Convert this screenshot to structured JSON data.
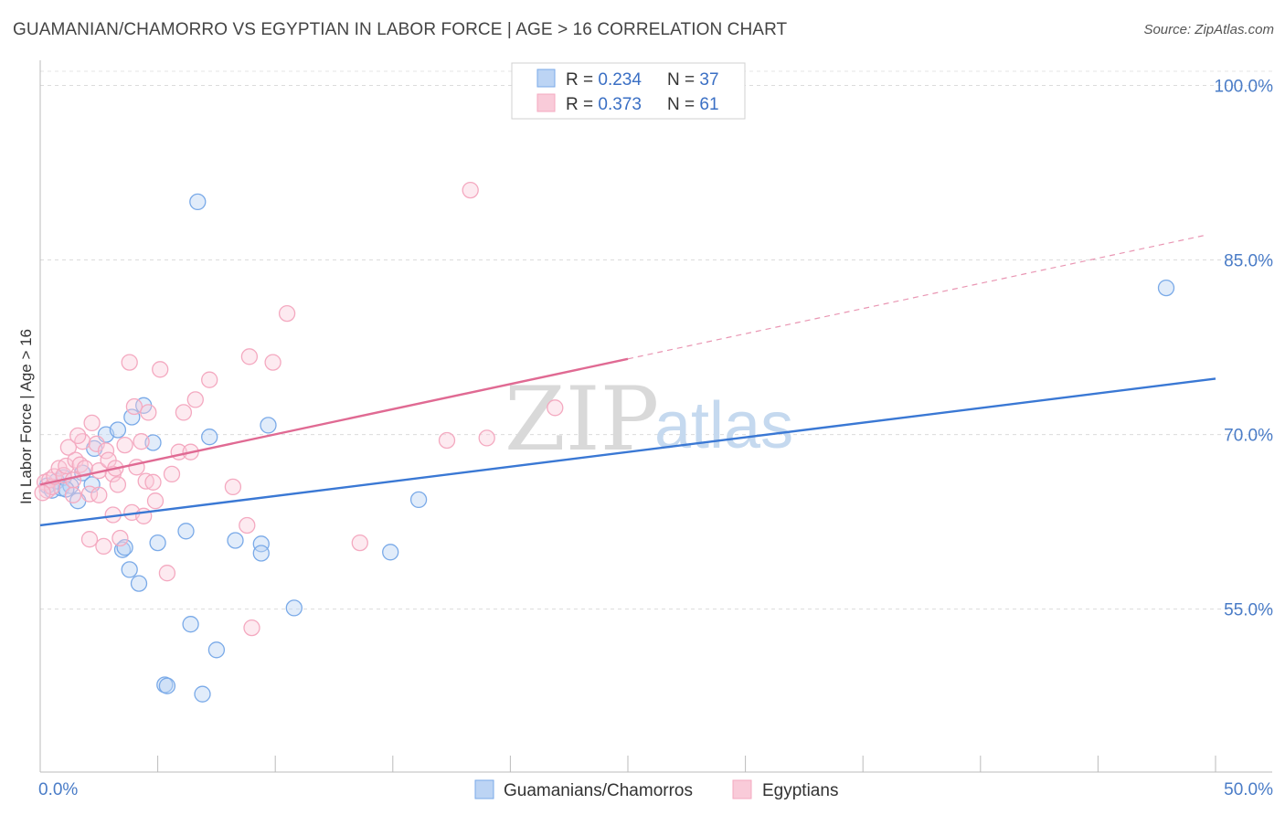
{
  "title": "GUAMANIAN/CHAMORRO VS EGYPTIAN IN LABOR FORCE | AGE > 16 CORRELATION CHART",
  "source": "Source: ZipAtlas.com",
  "watermark": {
    "zip": "ZIP",
    "atlas": "atlas"
  },
  "legend": {
    "rows": [
      {
        "r_label": "R = ",
        "r_value": "0.234",
        "n_label": "N = ",
        "n_value": "37"
      },
      {
        "r_label": "R = ",
        "r_value": "0.373",
        "n_label": "N = ",
        "n_value": "61"
      }
    ]
  },
  "chart_data": {
    "type": "scatter",
    "title": "GUAMANIAN/CHAMORRO VS EGYPTIAN IN LABOR FORCE | AGE > 16 CORRELATION CHART",
    "xlabel": "",
    "ylabel": "In Labor Force | Age > 16",
    "xlim": [
      0,
      50
    ],
    "ylim": [
      41,
      102
    ],
    "x_tick_labels": [
      {
        "value": 0,
        "label": "0.0%"
      },
      {
        "value": 50,
        "label": "50.0%"
      }
    ],
    "y_tick_labels": [
      {
        "value": 100,
        "label": "100.0%"
      },
      {
        "value": 85,
        "label": "85.0%"
      },
      {
        "value": 70,
        "label": "70.0%"
      },
      {
        "value": 55,
        "label": "55.0%"
      }
    ],
    "grid": "horizontal dashed",
    "legend_position": "top-center",
    "series": [
      {
        "name": "Guamanians/Chamorros",
        "color": "#7aaae8",
        "trend_color": "#3a78d4",
        "trend": {
          "x_start": 0,
          "y_start": 62.2,
          "x_end": 50,
          "y_end": 74.8
        },
        "points": [
          [
            0.3,
            65.6
          ],
          [
            0.5,
            65.2
          ],
          [
            0.7,
            66.0
          ],
          [
            0.9,
            65.4
          ],
          [
            1.0,
            66.3
          ],
          [
            1.3,
            65.6
          ],
          [
            1.6,
            64.3
          ],
          [
            1.8,
            66.7
          ],
          [
            2.2,
            65.7
          ],
          [
            2.3,
            68.8
          ],
          [
            2.8,
            70.0
          ],
          [
            3.3,
            70.4
          ],
          [
            3.5,
            60.1
          ],
          [
            3.6,
            60.3
          ],
          [
            3.8,
            58.4
          ],
          [
            3.9,
            71.5
          ],
          [
            4.2,
            57.2
          ],
          [
            4.4,
            72.5
          ],
          [
            4.8,
            69.3
          ],
          [
            5.0,
            60.7
          ],
          [
            5.3,
            48.5
          ],
          [
            5.4,
            48.4
          ],
          [
            6.2,
            61.7
          ],
          [
            6.4,
            53.7
          ],
          [
            6.7,
            90.0
          ],
          [
            6.9,
            47.7
          ],
          [
            7.2,
            69.8
          ],
          [
            7.5,
            51.5
          ],
          [
            8.3,
            60.9
          ],
          [
            9.4,
            60.6
          ],
          [
            9.4,
            59.8
          ],
          [
            9.7,
            70.8
          ],
          [
            10.8,
            55.1
          ],
          [
            14.9,
            59.9
          ],
          [
            16.1,
            64.4
          ],
          [
            47.9,
            82.6
          ],
          [
            1.1,
            65.3
          ]
        ]
      },
      {
        "name": "Egyptians",
        "color": "#f4a9c0",
        "trend_color": "#e06a93",
        "trend": {
          "x_start": 0,
          "y_start": 65.7,
          "x_end": 25,
          "y_end": 76.5
        },
        "trend_extension": {
          "x_start": 25,
          "y_start": 76.5,
          "x_end": 49.5,
          "y_end": 87.1
        },
        "points": [
          [
            0.2,
            65.9
          ],
          [
            0.3,
            65.2
          ],
          [
            0.4,
            66.1
          ],
          [
            0.5,
            65.5
          ],
          [
            0.6,
            66.4
          ],
          [
            0.8,
            67.1
          ],
          [
            1.0,
            66.5
          ],
          [
            1.1,
            67.3
          ],
          [
            1.2,
            68.9
          ],
          [
            1.4,
            66.1
          ],
          [
            1.4,
            64.8
          ],
          [
            1.5,
            67.8
          ],
          [
            1.7,
            67.4
          ],
          [
            1.8,
            69.4
          ],
          [
            1.9,
            67.1
          ],
          [
            2.1,
            64.9
          ],
          [
            2.1,
            61.0
          ],
          [
            2.2,
            71.0
          ],
          [
            2.4,
            69.2
          ],
          [
            2.5,
            66.9
          ],
          [
            2.5,
            64.8
          ],
          [
            2.7,
            60.4
          ],
          [
            2.8,
            68.6
          ],
          [
            2.9,
            67.8
          ],
          [
            3.1,
            66.6
          ],
          [
            3.1,
            63.1
          ],
          [
            3.2,
            67.1
          ],
          [
            3.3,
            65.7
          ],
          [
            3.4,
            61.1
          ],
          [
            3.6,
            69.1
          ],
          [
            3.8,
            76.2
          ],
          [
            3.9,
            63.3
          ],
          [
            4.0,
            72.4
          ],
          [
            4.1,
            67.2
          ],
          [
            4.3,
            69.4
          ],
          [
            4.4,
            63.0
          ],
          [
            4.5,
            66.0
          ],
          [
            4.6,
            71.9
          ],
          [
            4.8,
            65.9
          ],
          [
            4.9,
            64.3
          ],
          [
            5.1,
            75.6
          ],
          [
            5.4,
            58.1
          ],
          [
            5.6,
            66.6
          ],
          [
            5.9,
            68.5
          ],
          [
            6.1,
            71.9
          ],
          [
            6.4,
            68.5
          ],
          [
            6.6,
            73.0
          ],
          [
            7.2,
            74.7
          ],
          [
            8.2,
            65.5
          ],
          [
            8.8,
            62.2
          ],
          [
            8.9,
            76.7
          ],
          [
            9.0,
            53.4
          ],
          [
            9.9,
            76.2
          ],
          [
            10.5,
            80.4
          ],
          [
            13.6,
            60.7
          ],
          [
            17.3,
            69.5
          ],
          [
            18.3,
            91.0
          ],
          [
            19.0,
            69.7
          ],
          [
            21.9,
            72.3
          ],
          [
            0.1,
            65.0
          ],
          [
            1.6,
            69.9
          ]
        ]
      }
    ]
  }
}
